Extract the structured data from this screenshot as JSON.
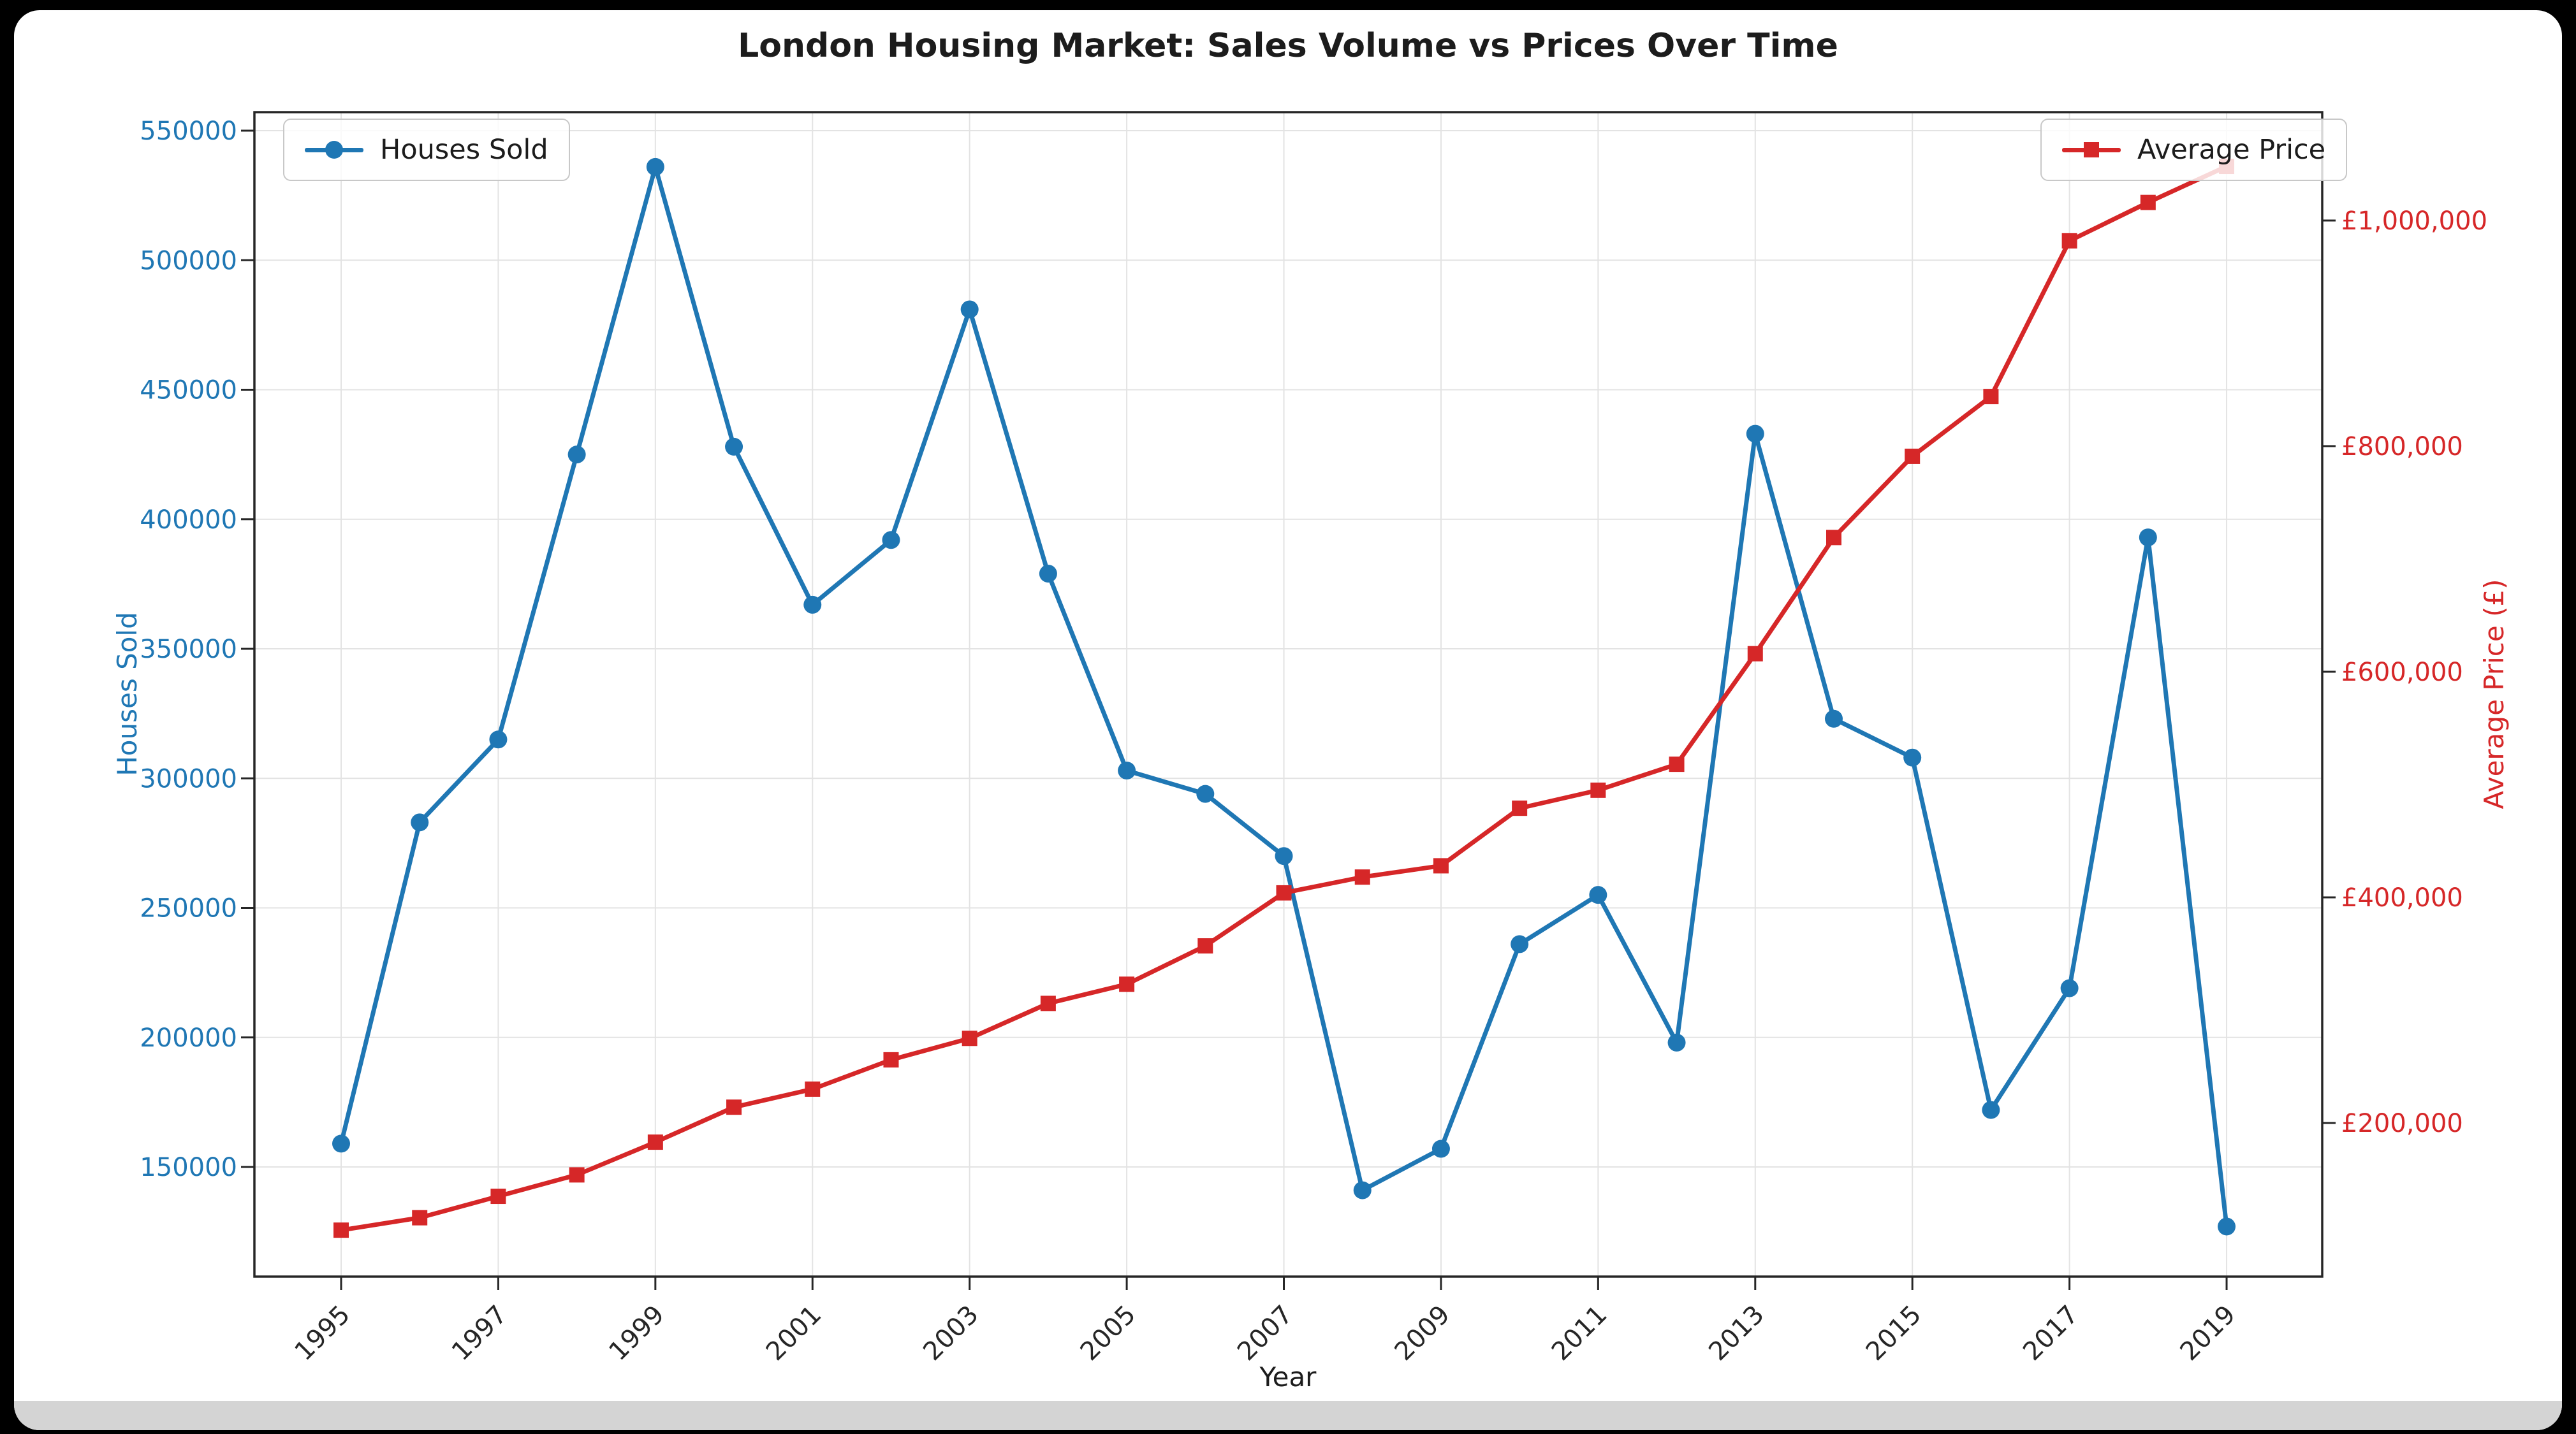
{
  "chart_data": {
    "type": "line",
    "title": "London Housing Market: Sales Volume vs Prices Over Time",
    "xlabel": "Year",
    "ylabel_left": "Houses Sold",
    "ylabel_right": "Average Price (£)",
    "grid": true,
    "legend_positions": [
      "upper left",
      "upper right"
    ],
    "x": [
      1995,
      1996,
      1997,
      1998,
      1999,
      2000,
      2001,
      2002,
      2003,
      2004,
      2005,
      2006,
      2007,
      2008,
      2009,
      2010,
      2011,
      2012,
      2013,
      2014,
      2015,
      2016,
      2017,
      2018,
      2019
    ],
    "x_tick_years": [
      1995,
      1997,
      1999,
      2001,
      2003,
      2005,
      2007,
      2009,
      2011,
      2013,
      2015,
      2017,
      2019
    ],
    "y_left_axis": {
      "min": 150000,
      "max": 550000,
      "tick_step": 50000,
      "tick_labels": [
        "550000",
        "500000",
        "450000",
        "400000",
        "350000",
        "300000",
        "250000",
        "200000",
        "150000"
      ],
      "tick_color": "#1f77b4"
    },
    "y_right_axis": {
      "tick_values": [
        1000000,
        800000,
        600000,
        400000,
        200000
      ],
      "tick_labels": [
        "£1,000,000",
        "£800,000",
        "£600,000",
        "£400,000",
        "£200,000"
      ],
      "tick_color": "#d62728"
    },
    "series": [
      {
        "name": "Houses Sold",
        "axis": "left",
        "color": "#1f77b4",
        "marker": "circle",
        "values": [
          159000,
          283000,
          315000,
          425000,
          536000,
          428000,
          367000,
          392000,
          481000,
          379000,
          303000,
          294000,
          270000,
          141000,
          157000,
          236000,
          255000,
          198000,
          433000,
          323000,
          308000,
          172000,
          219000,
          393000,
          127000
        ]
      },
      {
        "name": "Average Price",
        "axis": "right",
        "color": "#d62728",
        "marker": "square",
        "values": [
          105000,
          116000,
          135000,
          154000,
          183000,
          214000,
          230000,
          256000,
          275000,
          306000,
          323000,
          357000,
          404000,
          418000,
          428000,
          479000,
          495000,
          518000,
          616000,
          719000,
          791000,
          844000,
          982000,
          1016000,
          1048000
        ]
      }
    ],
    "colors": {
      "grid": "#e3e3e3",
      "spine": "#262626",
      "x_tick_text": "#262626",
      "title_text": "#1c1c1c"
    }
  }
}
